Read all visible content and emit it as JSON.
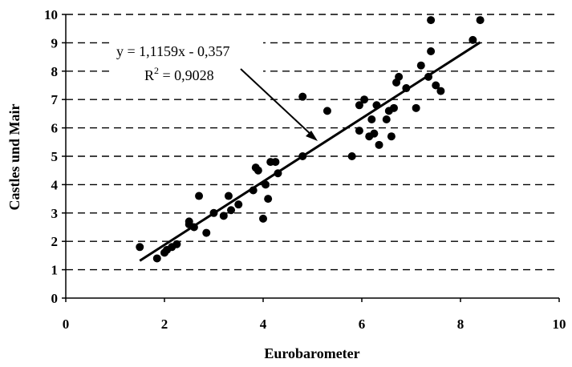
{
  "chart_data": {
    "type": "scatter",
    "xlabel": "Eurobarometer",
    "ylabel": "Castles und Mair",
    "xlim": [
      0,
      10
    ],
    "ylim": [
      0,
      10
    ],
    "x_ticks": [
      0,
      2,
      4,
      6,
      8,
      10
    ],
    "y_ticks": [
      0,
      1,
      2,
      3,
      4,
      5,
      6,
      7,
      8,
      9,
      10
    ],
    "grid": "horizontal-dashed",
    "legend": "none",
    "point_color": "#000000",
    "series": [
      {
        "points": [
          [
            1.5,
            1.8
          ],
          [
            1.85,
            1.4
          ],
          [
            2.0,
            1.6
          ],
          [
            2.05,
            1.7
          ],
          [
            2.15,
            1.8
          ],
          [
            2.25,
            1.9
          ],
          [
            2.5,
            2.6
          ],
          [
            2.5,
            2.7
          ],
          [
            2.6,
            2.5
          ],
          [
            2.7,
            3.6
          ],
          [
            2.85,
            2.3
          ],
          [
            3.0,
            3.0
          ],
          [
            3.2,
            2.9
          ],
          [
            3.3,
            3.6
          ],
          [
            3.35,
            3.1
          ],
          [
            3.5,
            3.3
          ],
          [
            3.8,
            3.8
          ],
          [
            3.85,
            4.6
          ],
          [
            3.9,
            4.5
          ],
          [
            4.0,
            2.8
          ],
          [
            4.05,
            4.0
          ],
          [
            4.1,
            3.5
          ],
          [
            4.15,
            4.8
          ],
          [
            4.25,
            4.8
          ],
          [
            4.3,
            4.4
          ],
          [
            4.8,
            7.1
          ],
          [
            4.8,
            5.0
          ],
          [
            5.3,
            6.6
          ],
          [
            5.8,
            5.0
          ],
          [
            5.95,
            5.9
          ],
          [
            5.95,
            6.8
          ],
          [
            6.05,
            7.0
          ],
          [
            6.15,
            5.7
          ],
          [
            6.2,
            6.3
          ],
          [
            6.25,
            5.8
          ],
          [
            6.3,
            6.8
          ],
          [
            6.35,
            5.4
          ],
          [
            6.5,
            6.3
          ],
          [
            6.55,
            6.6
          ],
          [
            6.6,
            5.7
          ],
          [
            6.65,
            6.7
          ],
          [
            6.7,
            7.6
          ],
          [
            6.75,
            7.8
          ],
          [
            6.9,
            7.4
          ],
          [
            7.1,
            6.7
          ],
          [
            7.2,
            8.2
          ],
          [
            7.35,
            7.8
          ],
          [
            7.4,
            9.8
          ],
          [
            7.4,
            8.7
          ],
          [
            7.5,
            7.5
          ],
          [
            7.6,
            7.3
          ],
          [
            8.25,
            9.1
          ],
          [
            8.4,
            9.8
          ]
        ]
      }
    ],
    "trendline": {
      "slope": 1.1159,
      "intercept": -0.357,
      "x_range": [
        1.5,
        8.4
      ]
    },
    "annotations": {
      "equation": "y = 1,1159x - 0,357",
      "r2_label": "R",
      "r2_exponent": "2",
      "r2_value": " = 0,9028"
    }
  }
}
